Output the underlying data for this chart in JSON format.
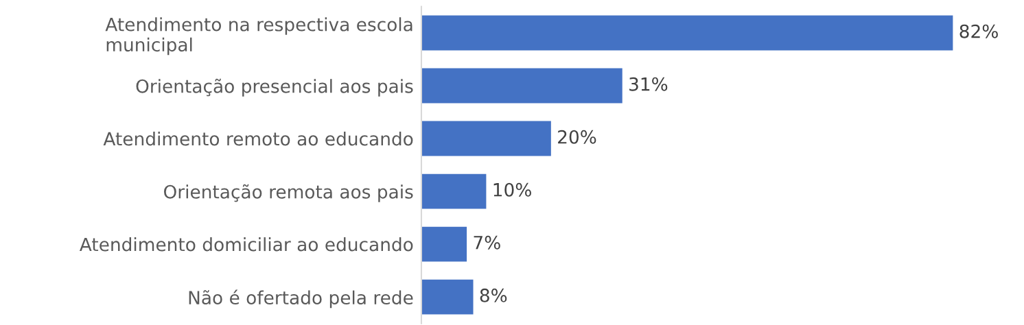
{
  "chart_data": {
    "type": "bar",
    "orientation": "horizontal",
    "categories": [
      "Atendimento na respectiva escola\nmunicipal",
      "Orientação presencial aos pais",
      "Atendimento remoto ao educando",
      "Orientação remota aos pais",
      "Atendimento domiciliar ao educando",
      "Não é ofertado pela rede"
    ],
    "values": [
      82,
      31,
      20,
      10,
      7,
      8
    ],
    "value_labels": [
      "82%",
      "31%",
      "20%",
      "10%",
      "7%",
      "8%"
    ],
    "color": "#4472c4",
    "grid": false,
    "legend": false
  }
}
